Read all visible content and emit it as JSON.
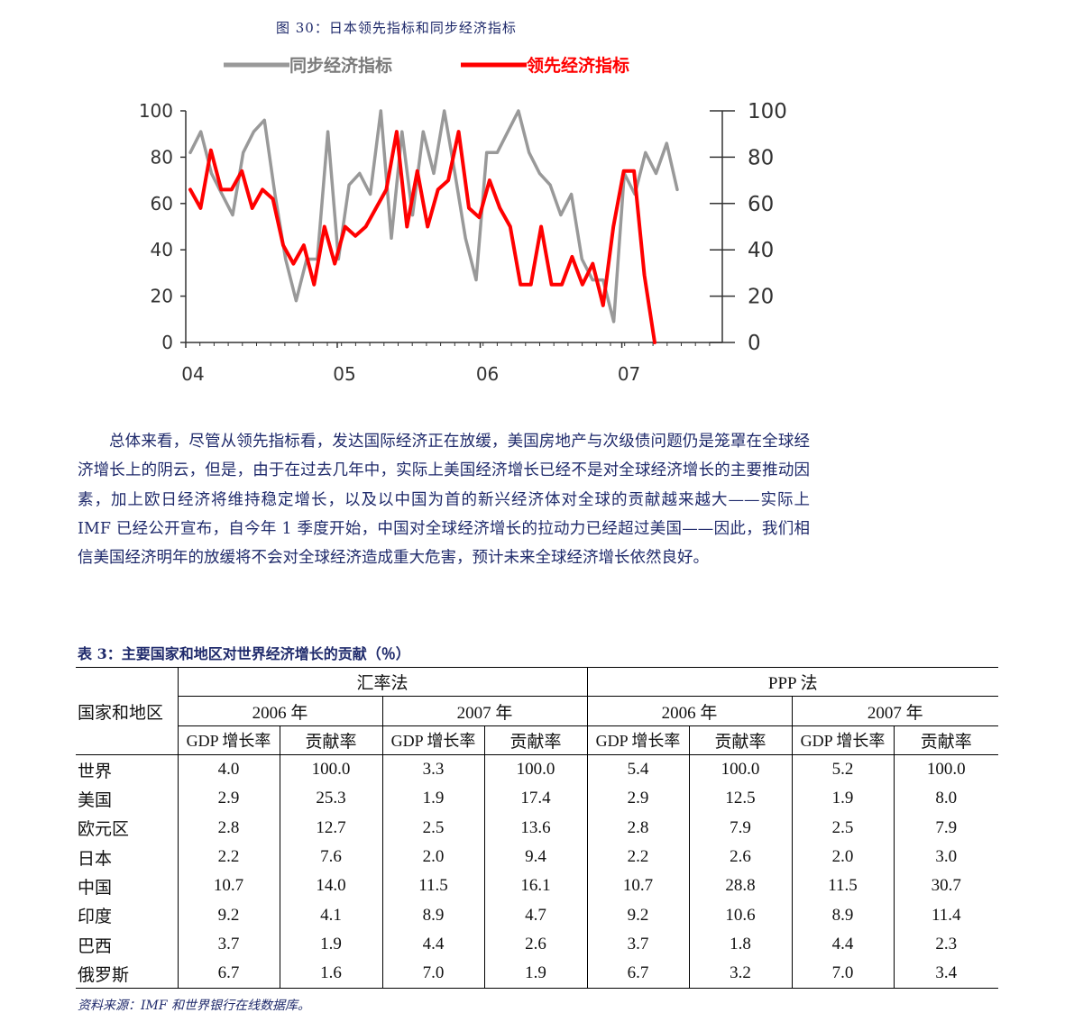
{
  "figure_title": "图 30：日本领先指标和同步经济指标",
  "chart_data": {
    "type": "line",
    "title": "",
    "legend_position": "top",
    "x_tick_labels": [
      "04",
      "05",
      "06",
      "07"
    ],
    "ylim": [
      0,
      100
    ],
    "left_ticks": [
      "100",
      "80",
      "60",
      "40",
      "20",
      "0"
    ],
    "right_ticks": [
      "100",
      "80",
      "60",
      "40",
      "20",
      "0"
    ],
    "series": [
      {
        "name": "同步经济指标",
        "color": "#999999",
        "values": [
          82,
          91,
          73,
          64,
          55,
          82,
          91,
          96,
          64,
          36,
          18,
          36,
          36,
          91,
          36,
          68,
          73,
          64,
          100,
          45,
          91,
          55,
          91,
          73,
          100,
          73,
          45,
          27,
          82,
          82,
          91,
          100,
          82,
          73,
          68,
          55,
          64,
          36,
          27,
          27,
          9,
          73,
          64,
          82,
          73,
          86,
          66
        ]
      },
      {
        "name": "领先经济指标",
        "color": "#ff0000",
        "values": [
          66,
          58,
          83,
          66,
          66,
          74,
          58,
          66,
          62,
          42,
          34,
          42,
          25,
          50,
          34,
          50,
          46,
          50,
          58,
          66,
          91,
          50,
          74,
          50,
          66,
          70,
          91,
          58,
          54,
          70,
          58,
          50,
          25,
          25,
          50,
          25,
          25,
          37,
          25,
          34,
          16,
          50,
          74,
          74,
          29,
          0
        ]
      }
    ]
  },
  "paragraph": "总体来看，尽管从领先指标看，发达国际经济正在放缓，美国房地产与次级债问题仍是笼罩在全球经济增长上的阴云，但是，由于在过去几年中，实际上美国经济增长已经不是对全球经济增长的主要推动因素，加上欧日经济将维持稳定增长，以及以中国为首的新兴经济体对全球的贡献越来越大——实际上 IMF 已经公开宣布，自今年 1 季度开始，中国对全球经济增长的拉动力已经超过美国——因此，我们相信美国经济明年的放缓将不会对全球经济造成重大危害，预计未来全球经济增长依然良好。",
  "table": {
    "title": "表 3：主要国家和地区对世界经济增长的贡献（％）",
    "region_header": "国家和地区",
    "method_exchange": "汇率法",
    "method_ppp": "PPP 法",
    "year_2006": "2006 年",
    "year_2007": "2007 年",
    "col_gdp": "GDP 增长率",
    "col_contrib": "贡献率",
    "rows": [
      {
        "country": "世界",
        "v": [
          "4.0",
          "100.0",
          "3.3",
          "100.0",
          "5.4",
          "100.0",
          "5.2",
          "100.0"
        ]
      },
      {
        "country": "美国",
        "v": [
          "2.9",
          "25.3",
          "1.9",
          "17.4",
          "2.9",
          "12.5",
          "1.9",
          "8.0"
        ]
      },
      {
        "country": "欧元区",
        "v": [
          "2.8",
          "12.7",
          "2.5",
          "13.6",
          "2.8",
          "7.9",
          "2.5",
          "7.9"
        ]
      },
      {
        "country": "日本",
        "v": [
          "2.2",
          "7.6",
          "2.0",
          "9.4",
          "2.2",
          "2.6",
          "2.0",
          "3.0"
        ]
      },
      {
        "country": "中国",
        "v": [
          "10.7",
          "14.0",
          "11.5",
          "16.1",
          "10.7",
          "28.8",
          "11.5",
          "30.7"
        ]
      },
      {
        "country": "印度",
        "v": [
          "9.2",
          "4.1",
          "8.9",
          "4.7",
          "9.2",
          "10.6",
          "8.9",
          "11.4"
        ]
      },
      {
        "country": "巴西",
        "v": [
          "3.7",
          "1.9",
          "4.4",
          "2.6",
          "3.7",
          "1.8",
          "4.4",
          "2.3"
        ]
      },
      {
        "country": "俄罗斯",
        "v": [
          "6.7",
          "1.6",
          "7.0",
          "1.9",
          "6.7",
          "3.2",
          "7.0",
          "3.4"
        ]
      }
    ]
  },
  "source": "资料来源：IMF 和世界银行在线数据库。"
}
